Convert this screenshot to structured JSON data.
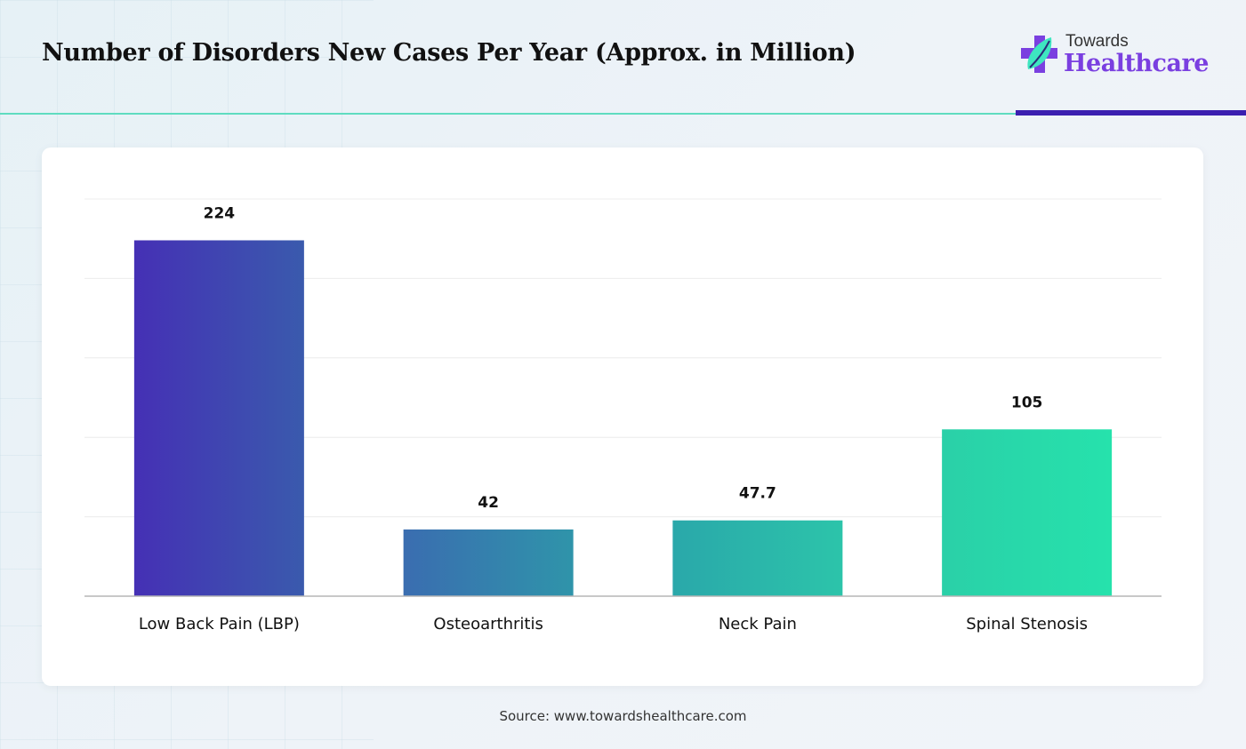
{
  "header": {
    "title": "Number of Disorders New Cases Per Year (Approx. in Million)"
  },
  "logo": {
    "line1": "Towards",
    "line2": "Healthcare",
    "icon": "cross-leaf-icon",
    "colors": {
      "cross": "#7a3fe0",
      "leaf": "#3ee6c0"
    }
  },
  "colors": {
    "accent_teal": "#5fdcc0",
    "accent_purple": "#3b1fb0"
  },
  "chart_data": {
    "type": "bar",
    "title": "Number of Disorders New Cases Per Year (Approx. in Million)",
    "xlabel": "",
    "ylabel": "",
    "categories": [
      "Low Back Pain (LBP)",
      "Osteoarthritis",
      "Neck Pain",
      "Spinal Stenosis"
    ],
    "values": [
      224,
      42,
      47.7,
      105
    ],
    "value_labels": [
      "224",
      "42",
      "47.7",
      "105"
    ],
    "ylim": [
      0,
      250
    ],
    "grid": true,
    "grid_step": 50,
    "y_tick_labels_visible": false,
    "legend": "none",
    "bar_gradient": [
      [
        "#4530b5",
        "#3a5aad"
      ],
      [
        "#3a6db0",
        "#2f94aa"
      ],
      [
        "#2aa8aa",
        "#2cc4aa"
      ],
      [
        "#2ad0a8",
        "#26e2ac"
      ]
    ]
  },
  "footer": {
    "source": "Source: www.towardshealthcare.com"
  }
}
